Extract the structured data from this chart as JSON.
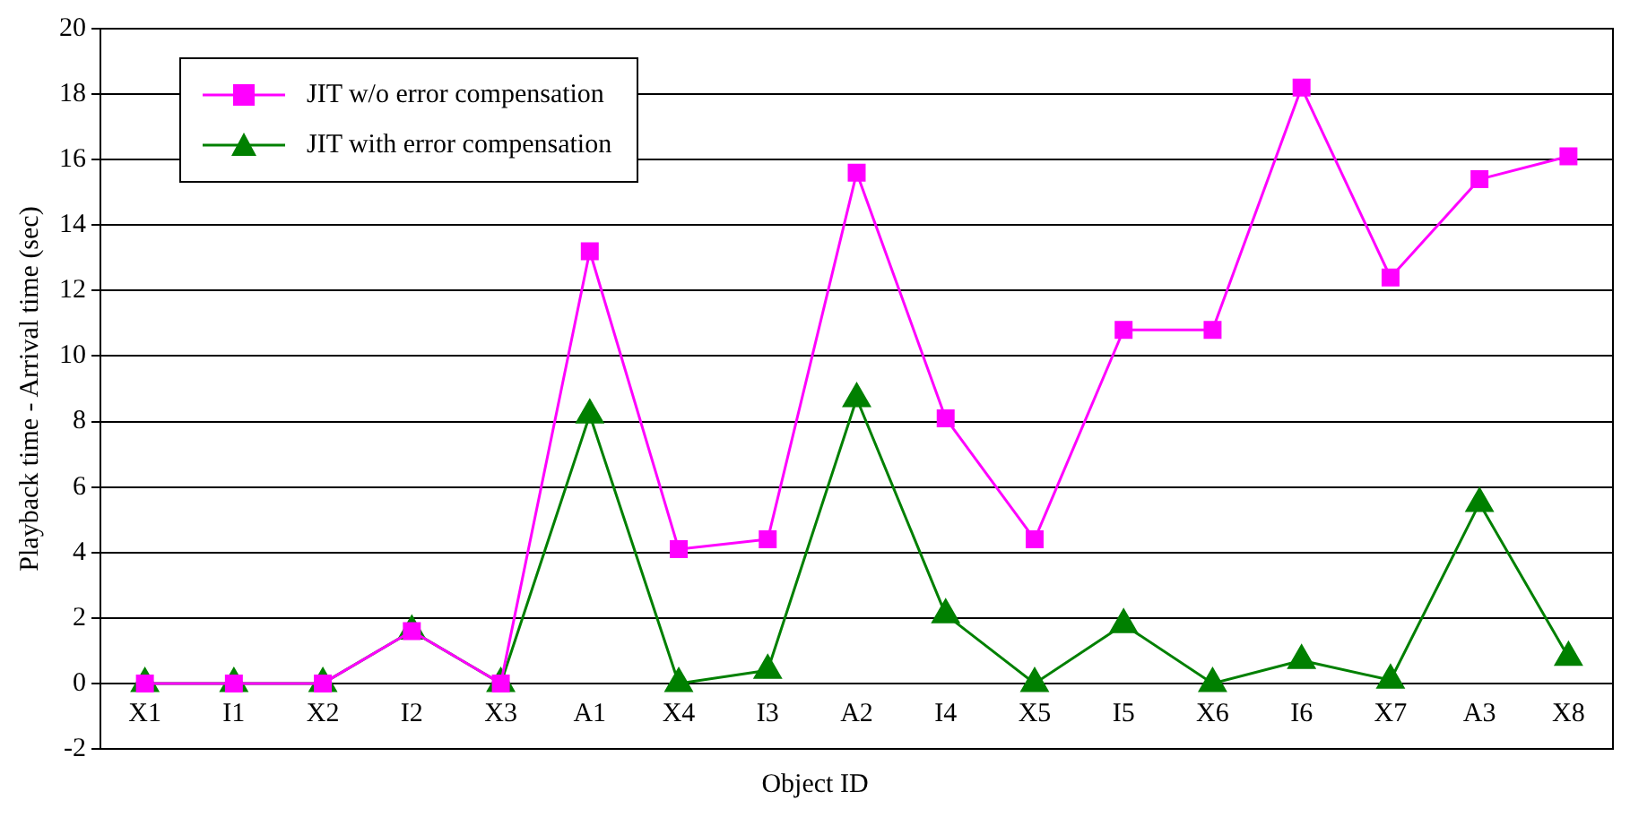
{
  "chart_data": {
    "type": "line",
    "xlabel": "Object ID",
    "ylabel": "Playback time - Arrival time (sec)",
    "categories": [
      "X1",
      "I1",
      "X2",
      "I2",
      "X3",
      "A1",
      "X4",
      "I3",
      "A2",
      "I4",
      "X5",
      "I5",
      "X6",
      "I6",
      "X7",
      "A3",
      "X8"
    ],
    "series": [
      {
        "name": "JIT w/o error compensation",
        "color": "#ff00ff",
        "marker": "square",
        "values": [
          0,
          0,
          0,
          1.6,
          0,
          13.2,
          4.1,
          4.4,
          15.6,
          8.1,
          4.4,
          10.8,
          10.8,
          18.2,
          12.4,
          15.4,
          16.1
        ]
      },
      {
        "name": "JIT with error compensation",
        "color": "#008000",
        "marker": "triangle",
        "values": [
          0,
          0,
          0,
          1.6,
          0,
          8.2,
          0,
          0.4,
          8.7,
          2.1,
          0,
          1.8,
          0,
          0.7,
          0.1,
          5.5,
          0.8
        ]
      }
    ],
    "ylim": [
      -2,
      20
    ],
    "yticks": [
      -2,
      0,
      2,
      4,
      6,
      8,
      10,
      12,
      14,
      16,
      18,
      20
    ],
    "grid": "y",
    "legend": "top left",
    "line_style": "solid"
  }
}
